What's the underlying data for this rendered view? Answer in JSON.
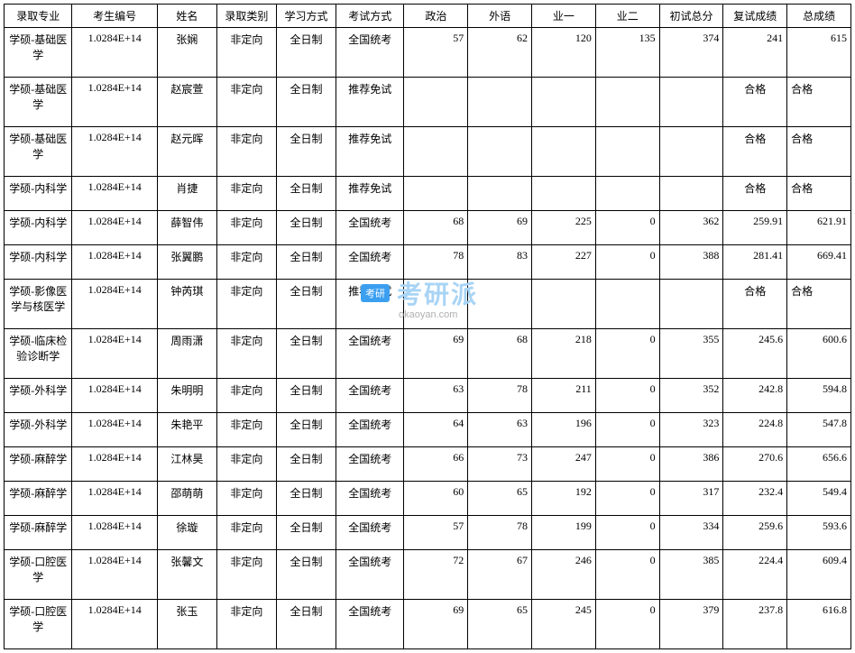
{
  "table": {
    "columns": [
      {
        "label": "录取专业",
        "class": "col-major",
        "align": "center"
      },
      {
        "label": "考生编号",
        "class": "col-id",
        "align": "center"
      },
      {
        "label": "姓名",
        "class": "col-name",
        "align": "center"
      },
      {
        "label": "录取类别",
        "class": "col-type",
        "align": "center"
      },
      {
        "label": "学习方式",
        "class": "col-study",
        "align": "center"
      },
      {
        "label": "考试方式",
        "class": "col-exam",
        "align": "center"
      },
      {
        "label": "政治",
        "class": "col-num",
        "align": "right"
      },
      {
        "label": "外语",
        "class": "col-num",
        "align": "right"
      },
      {
        "label": "业一",
        "class": "col-num",
        "align": "right"
      },
      {
        "label": "业二",
        "class": "col-num",
        "align": "right"
      },
      {
        "label": "初试总分",
        "class": "col-num",
        "align": "right"
      },
      {
        "label": "复试成绩",
        "class": "col-num",
        "align": "right"
      },
      {
        "label": "总成绩",
        "class": "col-num",
        "align": "right"
      }
    ],
    "col_align": [
      "center",
      "center",
      "center",
      "center",
      "center",
      "center",
      "right",
      "right",
      "right",
      "right",
      "right",
      "right",
      "right"
    ],
    "qualified_cols_align": [
      "center",
      "center",
      "center",
      "center",
      "center",
      "center",
      "right",
      "right",
      "right",
      "right",
      "right",
      "center",
      "left"
    ],
    "rows": [
      [
        "学硕-基础医学",
        "1.0284E+14",
        "张娴",
        "非定向",
        "全日制",
        "全国统考",
        "57",
        "62",
        "120",
        "135",
        "374",
        "241",
        "615"
      ],
      [
        "学硕-基础医学",
        "1.0284E+14",
        "赵宸萱",
        "非定向",
        "全日制",
        "推荐免试",
        "",
        "",
        "",
        "",
        "",
        "合格",
        "合格"
      ],
      [
        "学硕-基础医学",
        "1.0284E+14",
        "赵元晖",
        "非定向",
        "全日制",
        "推荐免试",
        "",
        "",
        "",
        "",
        "",
        "合格",
        "合格"
      ],
      [
        "学硕-内科学",
        "1.0284E+14",
        "肖捷",
        "非定向",
        "全日制",
        "推荐免试",
        "",
        "",
        "",
        "",
        "",
        "合格",
        "合格"
      ],
      [
        "学硕-内科学",
        "1.0284E+14",
        "薛智伟",
        "非定向",
        "全日制",
        "全国统考",
        "68",
        "69",
        "225",
        "0",
        "362",
        "259.91",
        "621.91"
      ],
      [
        "学硕-内科学",
        "1.0284E+14",
        "张翼鹏",
        "非定向",
        "全日制",
        "全国统考",
        "78",
        "83",
        "227",
        "0",
        "388",
        "281.41",
        "669.41"
      ],
      [
        "学硕-影像医学与核医学",
        "1.0284E+14",
        "钟芮琪",
        "非定向",
        "全日制",
        "推荐免试",
        "",
        "",
        "",
        "",
        "",
        "合格",
        "合格"
      ],
      [
        "学硕-临床检验诊断学",
        "1.0284E+14",
        "周雨潇",
        "非定向",
        "全日制",
        "全国统考",
        "69",
        "68",
        "218",
        "0",
        "355",
        "245.6",
        "600.6"
      ],
      [
        "学硕-外科学",
        "1.0284E+14",
        "朱明明",
        "非定向",
        "全日制",
        "全国统考",
        "63",
        "78",
        "211",
        "0",
        "352",
        "242.8",
        "594.8"
      ],
      [
        "学硕-外科学",
        "1.0284E+14",
        "朱艳平",
        "非定向",
        "全日制",
        "全国统考",
        "64",
        "63",
        "196",
        "0",
        "323",
        "224.8",
        "547.8"
      ],
      [
        "学硕-麻醉学",
        "1.0284E+14",
        "江林昊",
        "非定向",
        "全日制",
        "全国统考",
        "66",
        "73",
        "247",
        "0",
        "386",
        "270.6",
        "656.6"
      ],
      [
        "学硕-麻醉学",
        "1.0284E+14",
        "邵萌萌",
        "非定向",
        "全日制",
        "全国统考",
        "60",
        "65",
        "192",
        "0",
        "317",
        "232.4",
        "549.4"
      ],
      [
        "学硕-麻醉学",
        "1.0284E+14",
        "徐璇",
        "非定向",
        "全日制",
        "全国统考",
        "57",
        "78",
        "199",
        "0",
        "334",
        "259.6",
        "593.6"
      ],
      [
        "学硕-口腔医学",
        "1.0284E+14",
        "张馨文",
        "非定向",
        "全日制",
        "全国统考",
        "72",
        "67",
        "246",
        "0",
        "385",
        "224.4",
        "609.4"
      ],
      [
        "学硕-口腔医学",
        "1.0284E+14",
        "张玉",
        "非定向",
        "全日制",
        "全国统考",
        "69",
        "65",
        "245",
        "0",
        "379",
        "237.8",
        "616.8"
      ]
    ],
    "qualified_rows": [
      1,
      2,
      3,
      6
    ]
  },
  "watermark": {
    "badge": "考研",
    "text": "考研派",
    "sub": "okaoyan.com",
    "badge_bg": "#3b9ff0",
    "text_color": "#a8d4f5",
    "sub_color": "#b0b0b0"
  },
  "style": {
    "border_color": "#000000",
    "background_color": "#ffffff",
    "font_size": 12,
    "font_family": "SimSun"
  }
}
